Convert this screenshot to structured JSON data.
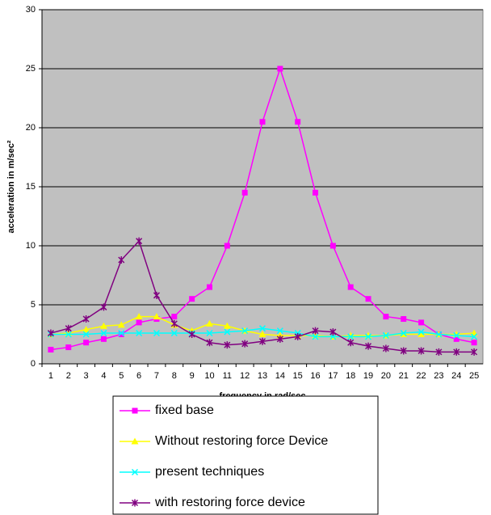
{
  "chart_data": {
    "type": "line",
    "x_label": "frequency in rad/sec",
    "y_label": "acceleration in m/sec²",
    "categories": [
      "1",
      "2",
      "3",
      "4",
      "5",
      "6",
      "7",
      "8",
      "9",
      "10",
      "11",
      "12",
      "13",
      "14",
      "15",
      "16",
      "17",
      "18",
      "19",
      "20",
      "21",
      "22",
      "23",
      "24",
      "25"
    ],
    "ylim": [
      0,
      30
    ],
    "yticks": [
      0,
      5,
      10,
      15,
      20,
      25,
      30
    ],
    "grid": true,
    "legend": "bottom",
    "series": [
      {
        "name": "fixed base",
        "color": "#ff00ff",
        "marker": "square",
        "values": [
          1.2,
          1.4,
          1.8,
          2.1,
          2.5,
          3.5,
          3.8,
          4.0,
          5.5,
          6.5,
          10,
          14.5,
          20.5,
          25,
          20.5,
          14.5,
          10,
          6.5,
          5.5,
          4.0,
          3.8,
          3.5,
          2.5,
          2.1,
          1.8
        ]
      },
      {
        "name": "Without restoring force Device",
        "color": "#ffff00",
        "marker": "triangle",
        "values": [
          2.5,
          2.6,
          2.9,
          3.2,
          3.3,
          4.0,
          4.0,
          3.3,
          2.8,
          3.4,
          3.2,
          2.8,
          2.5,
          2.4,
          2.4,
          2.4,
          2.3,
          2.4,
          2.4,
          2.4,
          2.5,
          2.5,
          2.5,
          2.5,
          2.6
        ]
      },
      {
        "name": "present techniques",
        "color": "#00ffff",
        "marker": "x",
        "values": [
          2.5,
          2.5,
          2.5,
          2.6,
          2.6,
          2.6,
          2.6,
          2.6,
          2.6,
          2.6,
          2.7,
          2.8,
          3.0,
          2.8,
          2.6,
          2.3,
          2.3,
          2.3,
          2.3,
          2.4,
          2.6,
          2.7,
          2.5,
          2.4,
          2.3
        ]
      },
      {
        "name": "with restoring force device",
        "color": "#800080",
        "marker": "star",
        "values": [
          2.6,
          3.0,
          3.8,
          4.8,
          8.8,
          10.4,
          5.8,
          3.4,
          2.5,
          1.8,
          1.6,
          1.7,
          1.9,
          2.1,
          2.3,
          2.8,
          2.7,
          1.8,
          1.5,
          1.3,
          1.1,
          1.1,
          1.0,
          1.0,
          1.0
        ]
      }
    ]
  }
}
